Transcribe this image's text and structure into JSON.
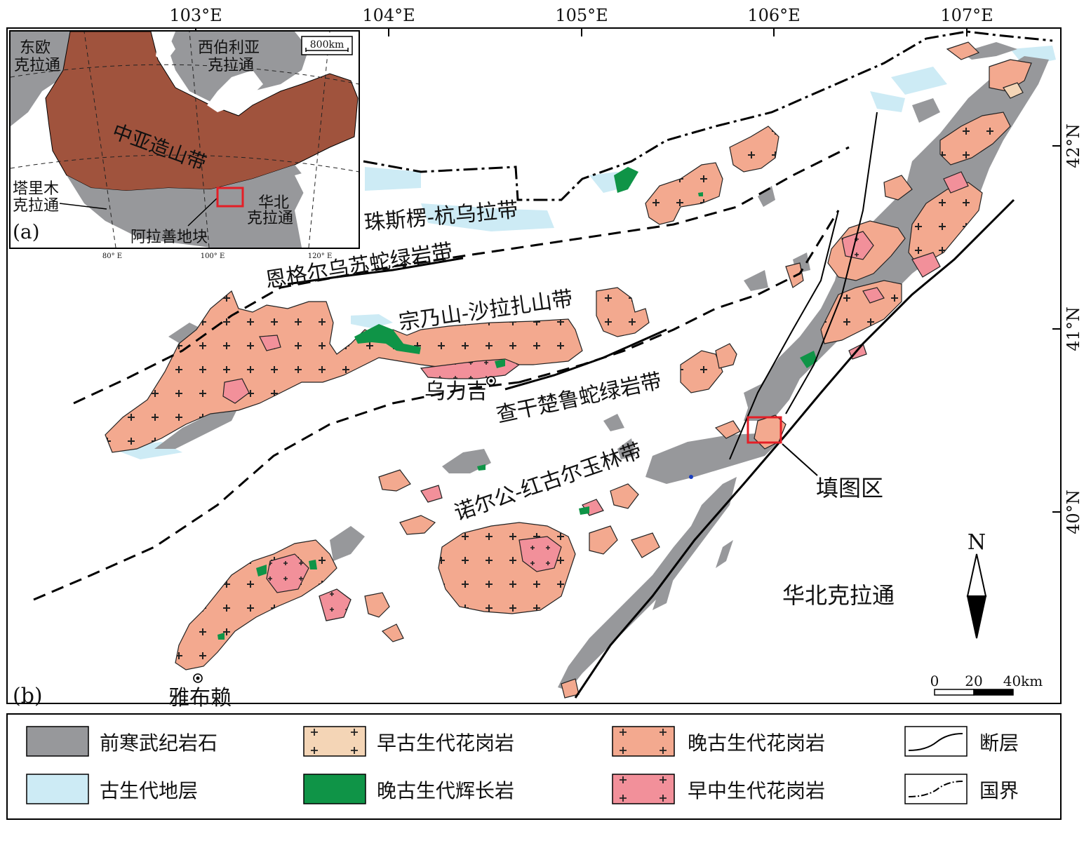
{
  "colors": {
    "precambrian": "#97989b",
    "paleozoic_strata": "#cdebf5",
    "early_paleozoic_granite": "#f4d5b6",
    "late_paleozoic_gabbro": "#0f9447",
    "late_paleozoic_granite": "#f3a98f",
    "early_mesozoic_granite": "#f2909a",
    "inset_caob": "#a0533d",
    "inset_craton": "#97989b",
    "highlight": "#e41e26"
  },
  "longitude_ticks": [
    "103°E",
    "104°E",
    "105°E",
    "106°E",
    "107°E"
  ],
  "latitude_ticks": [
    "42°N",
    "41°N",
    "40°N"
  ],
  "belt_labels": {
    "zhusilenghangwula": "珠斯楞-杭乌拉带",
    "engeerwusu": "恩格尔乌苏蛇绿岩带",
    "zongnaishan": "宗乃山-沙拉扎山带",
    "chaganchulu": "查干楚鲁蛇绿岩带",
    "nuoergong": "诺尔公-红古尔玉林带"
  },
  "places": {
    "wuliji": "乌力吉",
    "yabulai": "雅布赖",
    "north_china_craton": "华北克拉通",
    "mapping_area": "填图区"
  },
  "panel_labels": {
    "a": "(a)",
    "b": "(b)"
  },
  "north_arrow": "N",
  "scale_bar": {
    "zero": "0",
    "mid": "20",
    "end": "40km"
  },
  "inset": {
    "east_europe": [
      "东欧",
      "克拉通"
    ],
    "siberia": [
      "西伯利亚",
      "克拉通"
    ],
    "caob": "中亚造山带",
    "tarim": [
      "塔里木",
      "克拉通"
    ],
    "north_china": [
      "华北",
      "克拉通"
    ],
    "alxa": "阿拉善地块",
    "scale": "800km",
    "lon_ticks": [
      "80° E",
      "100° E",
      "120° E"
    ]
  },
  "legend": [
    {
      "key": "precambrian",
      "label": "前寒武纪岩石"
    },
    {
      "key": "paleozoic_strata",
      "label": "古生代地层"
    },
    {
      "key": "early_paleozoic_granite",
      "label": "早古生代花岗岩"
    },
    {
      "key": "late_paleozoic_gabbro",
      "label": "晚古生代辉长岩"
    },
    {
      "key": "late_paleozoic_granite",
      "label": "晚古生代花岗岩"
    },
    {
      "key": "early_mesozoic_granite",
      "label": "早中生代花岗岩"
    },
    {
      "key": "fault",
      "label": "断层"
    },
    {
      "key": "border",
      "label": "国界"
    }
  ]
}
